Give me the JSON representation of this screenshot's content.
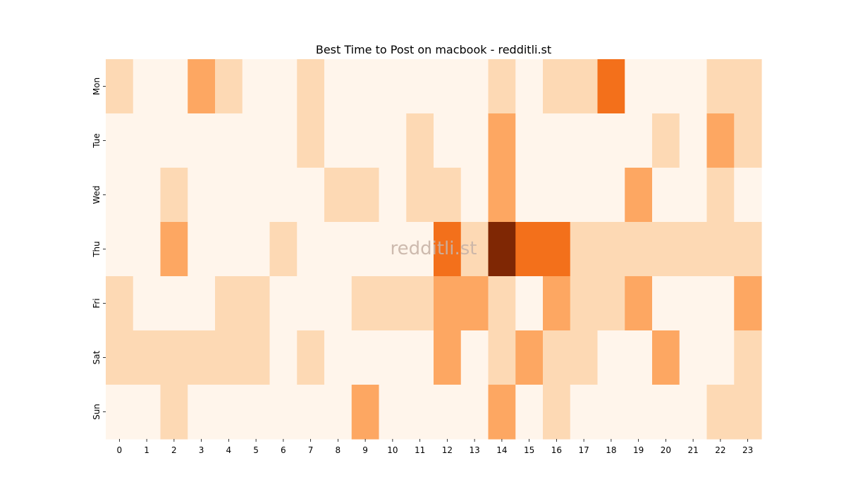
{
  "chart_data": {
    "type": "heatmap",
    "title": "Best Time to Post on macbook - redditli.st",
    "xlabel": "",
    "ylabel": "",
    "x_categories": [
      "0",
      "1",
      "2",
      "3",
      "4",
      "5",
      "6",
      "7",
      "8",
      "9",
      "10",
      "11",
      "12",
      "13",
      "14",
      "15",
      "16",
      "17",
      "18",
      "19",
      "20",
      "21",
      "22",
      "23"
    ],
    "y_categories": [
      "Mon",
      "Tue",
      "Wed",
      "Thu",
      "Fri",
      "Sat",
      "Sun"
    ],
    "values": [
      [
        1,
        0,
        0,
        2,
        1,
        0,
        0,
        1,
        0,
        0,
        0,
        0,
        0,
        0,
        1,
        0,
        1,
        1,
        3,
        0,
        0,
        0,
        1,
        1
      ],
      [
        0,
        0,
        0,
        0,
        0,
        0,
        0,
        1,
        0,
        0,
        0,
        1,
        0,
        0,
        2,
        0,
        0,
        0,
        0,
        0,
        1,
        0,
        2,
        1
      ],
      [
        0,
        0,
        1,
        0,
        0,
        0,
        0,
        0,
        1,
        1,
        0,
        1,
        1,
        0,
        2,
        0,
        0,
        0,
        0,
        2,
        0,
        0,
        1,
        0
      ],
      [
        0,
        0,
        2,
        0,
        0,
        0,
        1,
        0,
        0,
        0,
        0,
        0,
        3,
        1,
        5,
        3,
        3,
        1,
        1,
        1,
        1,
        1,
        1,
        1
      ],
      [
        1,
        0,
        0,
        0,
        1,
        1,
        0,
        0,
        0,
        1,
        1,
        1,
        2,
        2,
        1,
        0,
        2,
        1,
        1,
        2,
        0,
        0,
        0,
        2
      ],
      [
        1,
        1,
        1,
        1,
        1,
        1,
        0,
        1,
        0,
        0,
        0,
        0,
        2,
        0,
        1,
        2,
        1,
        1,
        0,
        0,
        2,
        0,
        0,
        1
      ],
      [
        0,
        0,
        1,
        0,
        0,
        0,
        0,
        0,
        0,
        2,
        0,
        0,
        0,
        0,
        2,
        0,
        1,
        0,
        0,
        0,
        0,
        0,
        1,
        1
      ]
    ],
    "value_range": [
      0,
      5
    ],
    "color_scale": [
      "#fff5eb",
      "#fdd9b4",
      "#fda762",
      "#f3701b",
      "#c84c04",
      "#7f2704"
    ],
    "watermark": "redditli.st",
    "watermark_color": "#c8b4a8",
    "grid": false,
    "legend": "none"
  }
}
